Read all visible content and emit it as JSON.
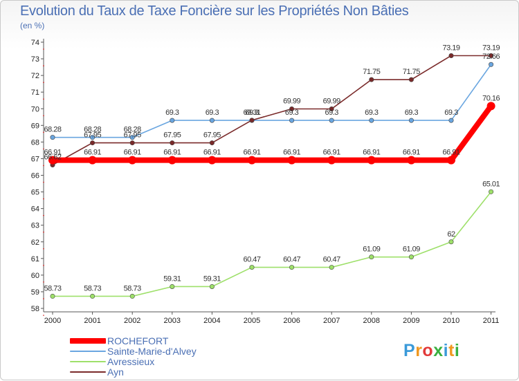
{
  "title": "Evolution du Taux de Taxe Foncière sur les Propriétés Non Bâties",
  "subtitle": "(en %)",
  "brand": "Proxiti",
  "chart_data": {
    "type": "line",
    "title": "Evolution du Taux de Taxe Foncière sur les Propriétés Non Bâties",
    "ylabel": "(en %)",
    "xlabel": "",
    "ylim": [
      58,
      74
    ],
    "yticks": [
      58,
      59,
      60,
      61,
      62,
      63,
      64,
      65,
      66,
      67,
      68,
      69,
      70,
      71,
      72,
      73,
      74
    ],
    "grid": false,
    "legend": "bottom-left",
    "categories": [
      "2000",
      "2001",
      "2002",
      "2003",
      "2004",
      "2005",
      "2006",
      "2007",
      "2008",
      "2009",
      "2010",
      "2011"
    ],
    "series": [
      {
        "name": "ROCHEFORT",
        "color": "#ff0000",
        "values": [
          66.91,
          66.91,
          66.91,
          66.91,
          66.91,
          66.91,
          66.91,
          66.91,
          66.91,
          66.91,
          66.91,
          70.16
        ],
        "labels": [
          "66.91",
          "66.91",
          "66.91",
          "66.91",
          "66.91",
          "66.91",
          "66.91",
          "66.91",
          "66.91",
          "66.91",
          "66.91",
          "70.16"
        ]
      },
      {
        "name": "Sainte-Marie-d'Alvey",
        "color": "#6aa6e0",
        "values": [
          68.28,
          68.28,
          68.28,
          69.3,
          69.3,
          69.3,
          69.3,
          69.3,
          69.3,
          69.3,
          69.3,
          72.66
        ],
        "labels": [
          "68.28",
          "68.28",
          "68.28",
          "69.3",
          "69.3",
          "69.3",
          "69.3",
          "69.3",
          "69.3",
          "69.3",
          "69.3",
          "72.66"
        ]
      },
      {
        "name": "Avressieux",
        "color": "#9ee06a",
        "values": [
          58.73,
          58.73,
          58.73,
          59.31,
          59.31,
          60.47,
          60.47,
          60.47,
          61.09,
          61.09,
          62,
          65.01
        ],
        "labels": [
          "58.73",
          "58.73",
          "58.73",
          "59.31",
          "59.31",
          "60.47",
          "60.47",
          "60.47",
          "61.09",
          "61.09",
          "62",
          "65.01"
        ]
      },
      {
        "name": "Ayn",
        "color": "#7a2a2a",
        "values": [
          66.62,
          67.95,
          67.95,
          67.95,
          67.95,
          69.31,
          69.99,
          69.99,
          71.75,
          71.75,
          73.19,
          73.19
        ],
        "labels": [
          "66.62",
          "67.95",
          "67.95",
          "67.95",
          "67.95",
          "69.31",
          "69.99",
          "69.99",
          "71.75",
          "71.75",
          "73.19",
          "73.19"
        ]
      }
    ]
  }
}
